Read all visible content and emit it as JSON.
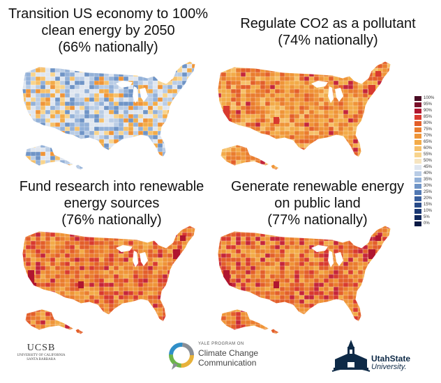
{
  "panels": [
    {
      "title_lines": [
        "Transition US economy to 100%",
        "clean energy by 2050",
        "(66% nationally)"
      ],
      "scheme": "mixed"
    },
    {
      "title_lines": [
        "Regulate CO2 as a pollutant",
        "(74% nationally)"
      ],
      "scheme": "orange"
    },
    {
      "title_lines": [
        "Fund research into renewable",
        "energy sources",
        "(76% nationally)"
      ],
      "scheme": "orange-red"
    },
    {
      "title_lines": [
        "Generate renewable energy",
        "on public land",
        "(77% nationally)"
      ],
      "scheme": "orange-red"
    }
  ],
  "legend": {
    "labels": [
      "100%",
      "95%",
      "90%",
      "85%",
      "80%",
      "75%",
      "70%",
      "65%",
      "60%",
      "55%",
      "50%",
      "45%",
      "40%",
      "35%",
      "30%",
      "25%",
      "20%",
      "15%",
      "10%",
      "5%",
      "0%"
    ],
    "colors": [
      "#4a0c24",
      "#7a0f2a",
      "#b01630",
      "#d83a2f",
      "#e35f2a",
      "#ea7d2e",
      "#ef9538",
      "#f3ab48",
      "#f6c06a",
      "#f8d48d",
      "#f6e4c0",
      "#dfe6f0",
      "#b9cce5",
      "#93b1d8",
      "#6f94c6",
      "#5178b3",
      "#395f9e",
      "#274a88",
      "#1a3873",
      "#10285d",
      "#091a45"
    ]
  },
  "logos": {
    "ucsb": {
      "name": "UCSB",
      "sub1": "UNIVERSITY OF CALIFORNIA",
      "sub2": "SANTA BARBARA"
    },
    "yale": {
      "pre": "YALE PROGRAM ON",
      "line1": "Climate Change",
      "line2": "Communication"
    },
    "usu": {
      "line1": "UtahState",
      "line2": "University."
    }
  }
}
